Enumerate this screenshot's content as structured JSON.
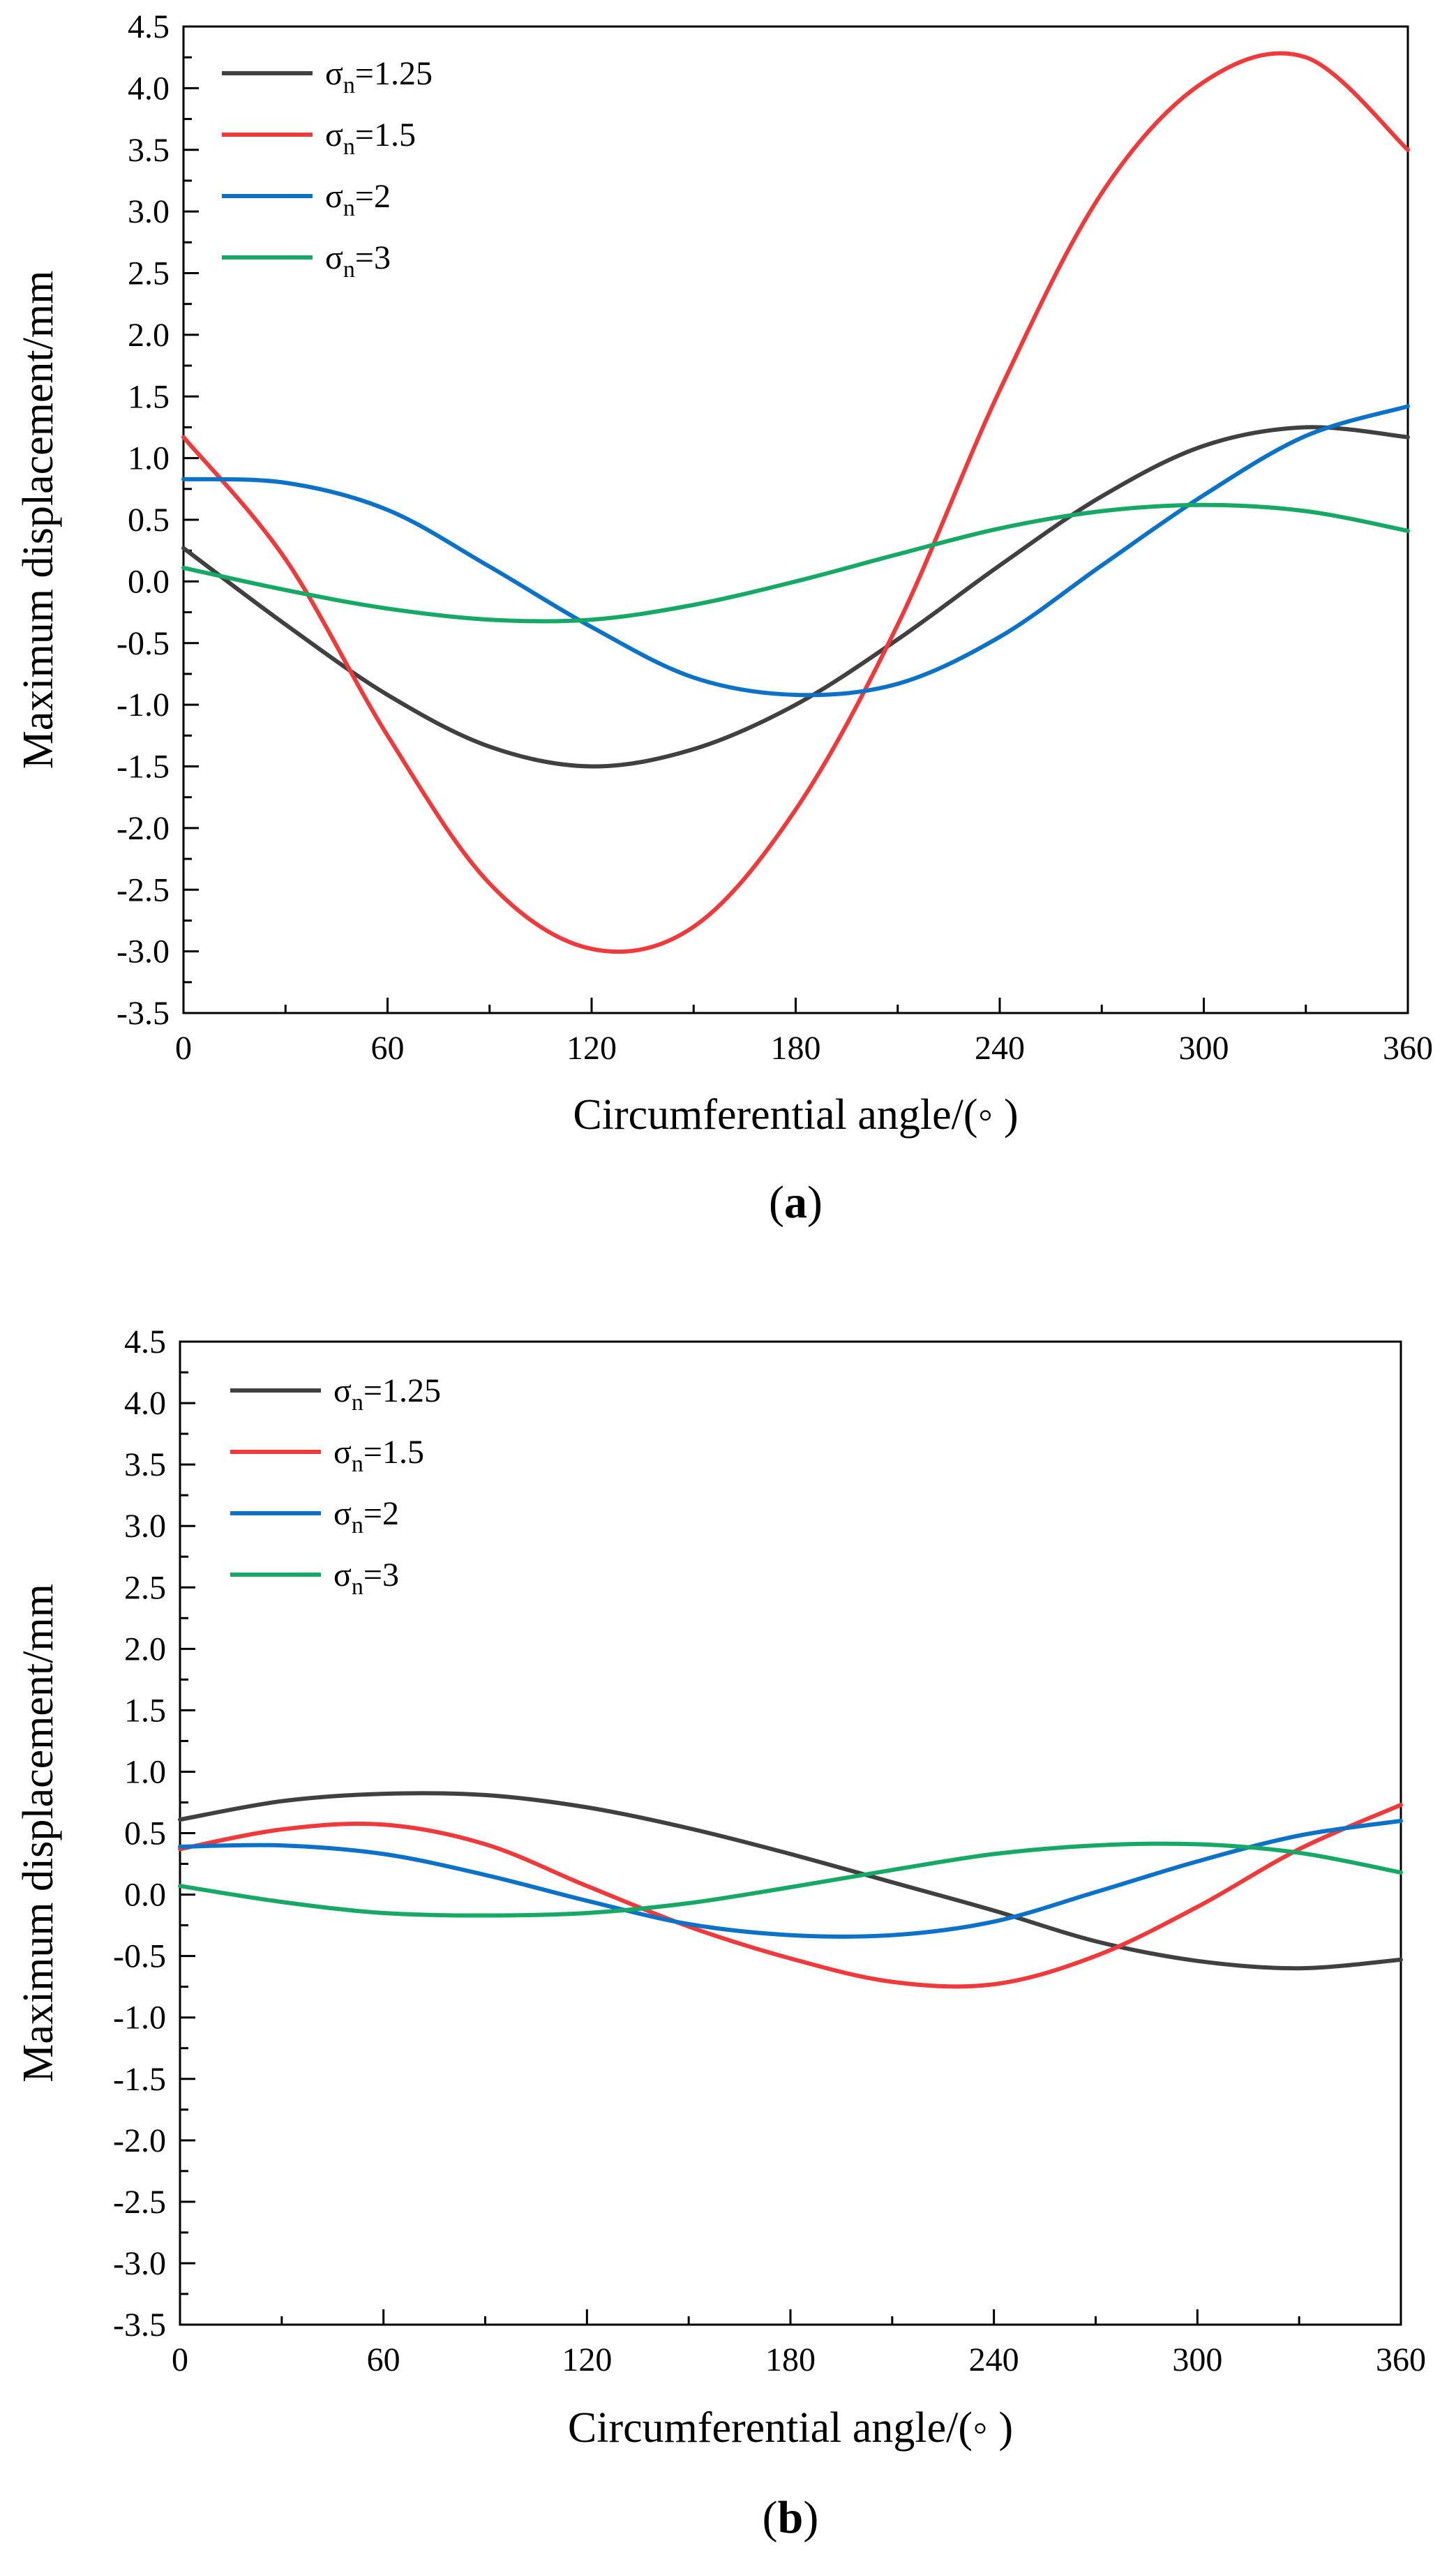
{
  "chart_data": [
    {
      "type": "line",
      "caption_paren_open": "(",
      "caption_letter": "a",
      "caption_paren_close": ")",
      "xlabel": "Circumferential angle/(◦ )",
      "ylabel": "Maximum displacement/mm",
      "xlim": [
        0,
        360
      ],
      "ylim": [
        -3.5,
        4.5
      ],
      "xticks": [
        "0",
        "60",
        "120",
        "180",
        "240",
        "300",
        "360"
      ],
      "yticks": [
        "-3.5",
        "-3.0",
        "-2.5",
        "-2.0",
        "-1.5",
        "-1.0",
        "-0.5",
        "0.0",
        "0.5",
        "1.0",
        "1.5",
        "2.0",
        "2.5",
        "3.0",
        "3.5",
        "4.0",
        "4.5"
      ],
      "legend_position": "top-left",
      "x": [
        0,
        30,
        60,
        90,
        120,
        150,
        180,
        210,
        240,
        270,
        300,
        330,
        360
      ],
      "series": [
        {
          "name_base": "σ",
          "name_sub": "n",
          "name_value": "=1.25",
          "color": "#404040",
          "values": [
            0.27,
            -0.35,
            -0.92,
            -1.34,
            -1.5,
            -1.36,
            -1.0,
            -0.47,
            0.13,
            0.69,
            1.1,
            1.25,
            1.17
          ]
        },
        {
          "name_base": "σ",
          "name_sub": "n",
          "name_value": "=1.5",
          "color": "#f0393a",
          "values": [
            1.17,
            0.18,
            -1.25,
            -2.45,
            -2.98,
            -2.8,
            -1.85,
            -0.35,
            1.55,
            3.15,
            4.05,
            4.25,
            3.5
          ]
        },
        {
          "name_base": "σ",
          "name_sub": "n",
          "name_value": "=2",
          "color": "#0b72c8",
          "values": [
            0.83,
            0.8,
            0.58,
            0.12,
            -0.37,
            -0.78,
            -0.92,
            -0.83,
            -0.45,
            0.13,
            0.7,
            1.18,
            1.42
          ]
        },
        {
          "name_base": "σ",
          "name_sub": "n",
          "name_value": "=3",
          "color": "#15a965",
          "values": [
            0.11,
            -0.07,
            -0.22,
            -0.31,
            -0.31,
            -0.19,
            0.0,
            0.22,
            0.43,
            0.57,
            0.62,
            0.57,
            0.41
          ]
        }
      ]
    },
    {
      "type": "line",
      "caption_paren_open": "(",
      "caption_letter": "b",
      "caption_paren_close": ")",
      "xlabel": "Circumferential angle/(◦ )",
      "ylabel": "Maximum displacement/mm",
      "xlim": [
        0,
        360
      ],
      "ylim": [
        -3.5,
        4.5
      ],
      "xticks": [
        "0",
        "60",
        "120",
        "180",
        "240",
        "300",
        "360"
      ],
      "yticks": [
        "-3.5",
        "-3.0",
        "-2.5",
        "-2.0",
        "-1.5",
        "-1.0",
        "-0.5",
        "0.0",
        "0.5",
        "1.0",
        "1.5",
        "2.0",
        "2.5",
        "3.0",
        "3.5",
        "4.0",
        "4.5"
      ],
      "legend_position": "top-left",
      "x": [
        0,
        30,
        60,
        90,
        120,
        150,
        180,
        210,
        240,
        270,
        300,
        330,
        360
      ],
      "series": [
        {
          "name_base": "σ",
          "name_sub": "n",
          "name_value": "=1.25",
          "color": "#404040",
          "values": [
            0.61,
            0.76,
            0.82,
            0.81,
            0.71,
            0.54,
            0.33,
            0.1,
            -0.13,
            -0.38,
            -0.54,
            -0.6,
            -0.53
          ]
        },
        {
          "name_base": "σ",
          "name_sub": "n",
          "name_value": "=1.5",
          "color": "#f0393a",
          "values": [
            0.37,
            0.53,
            0.57,
            0.41,
            0.07,
            -0.26,
            -0.52,
            -0.71,
            -0.73,
            -0.5,
            -0.1,
            0.37,
            0.73
          ]
        },
        {
          "name_base": "σ",
          "name_sub": "n",
          "name_value": "=2",
          "color": "#0b72c8",
          "values": [
            0.39,
            0.4,
            0.33,
            0.16,
            -0.05,
            -0.24,
            -0.33,
            -0.33,
            -0.22,
            0.02,
            0.27,
            0.48,
            0.6
          ]
        },
        {
          "name_base": "σ",
          "name_sub": "n",
          "name_value": "=3",
          "color": "#15a965",
          "values": [
            0.07,
            -0.06,
            -0.15,
            -0.17,
            -0.15,
            -0.07,
            0.06,
            0.2,
            0.33,
            0.4,
            0.41,
            0.34,
            0.18
          ]
        }
      ]
    }
  ]
}
